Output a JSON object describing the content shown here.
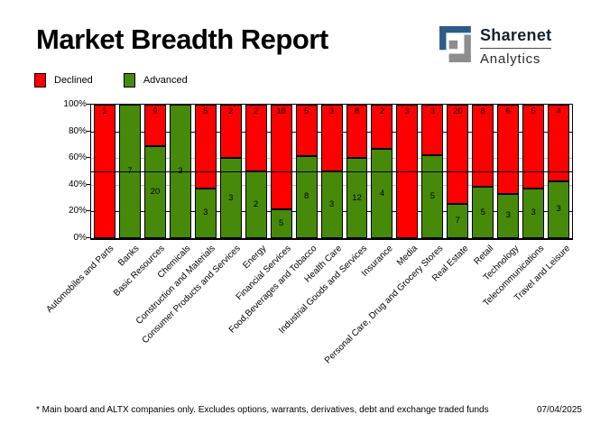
{
  "header": {
    "title": "Market Breadth Report",
    "logo": {
      "line1": "Sharenet",
      "line2": "Analytics",
      "mark_blue": "#2d5c87",
      "mark_gray": "#8d8d8d"
    }
  },
  "legend": {
    "items": [
      {
        "label": "Declined",
        "color": "#ff0000"
      },
      {
        "label": "Advanced",
        "color": "#478a0a"
      }
    ]
  },
  "chart_data": {
    "type": "bar",
    "stacked": true,
    "stacking": "percent",
    "categories": [
      "Automobiles and Parts",
      "Banks",
      "Basic Resources",
      "Chemicals",
      "Construction and Materials",
      "Consumer Products and Services",
      "Energy",
      "Financial Services",
      "Food,Beverages and Tobacco",
      "Health Care",
      "Industrial Goods and Services",
      "Insurance",
      "Media",
      "Personal Care, Drug and Grocery Stores",
      "Real Estate",
      "Retail",
      "Technology",
      "Telecommunications",
      "Travel and Leisure"
    ],
    "series": [
      {
        "name": "Declined",
        "color": "#ff0000",
        "values": [
          1,
          0,
          9,
          0,
          5,
          2,
          2,
          18,
          5,
          3,
          8,
          2,
          3,
          3,
          20,
          8,
          6,
          5,
          4
        ]
      },
      {
        "name": "Advanced",
        "color": "#478a0a",
        "values": [
          0,
          7,
          20,
          3,
          3,
          3,
          2,
          5,
          8,
          3,
          12,
          4,
          0,
          5,
          7,
          5,
          3,
          3,
          3
        ]
      }
    ],
    "y_ticks": [
      "100%",
      "80%",
      "60%",
      "40%",
      "20%",
      "0%"
    ],
    "ylim": [
      0,
      100
    ],
    "gridlines": [
      {
        "pct": 20,
        "color": "#000080"
      },
      {
        "pct": 40,
        "color": "#c0c0c0"
      },
      {
        "pct": 60,
        "color": "#c0c0c0"
      },
      {
        "pct": 80,
        "color": "#000080"
      }
    ],
    "midline": {
      "pct": 50,
      "color": "#000000"
    },
    "legend_position": "top-left",
    "grid": true
  },
  "footer": {
    "note": "* Main board and ALTX companies only. Excludes options, warrants, derivatives, debt and exchange traded funds",
    "date": "07/04/2025"
  }
}
